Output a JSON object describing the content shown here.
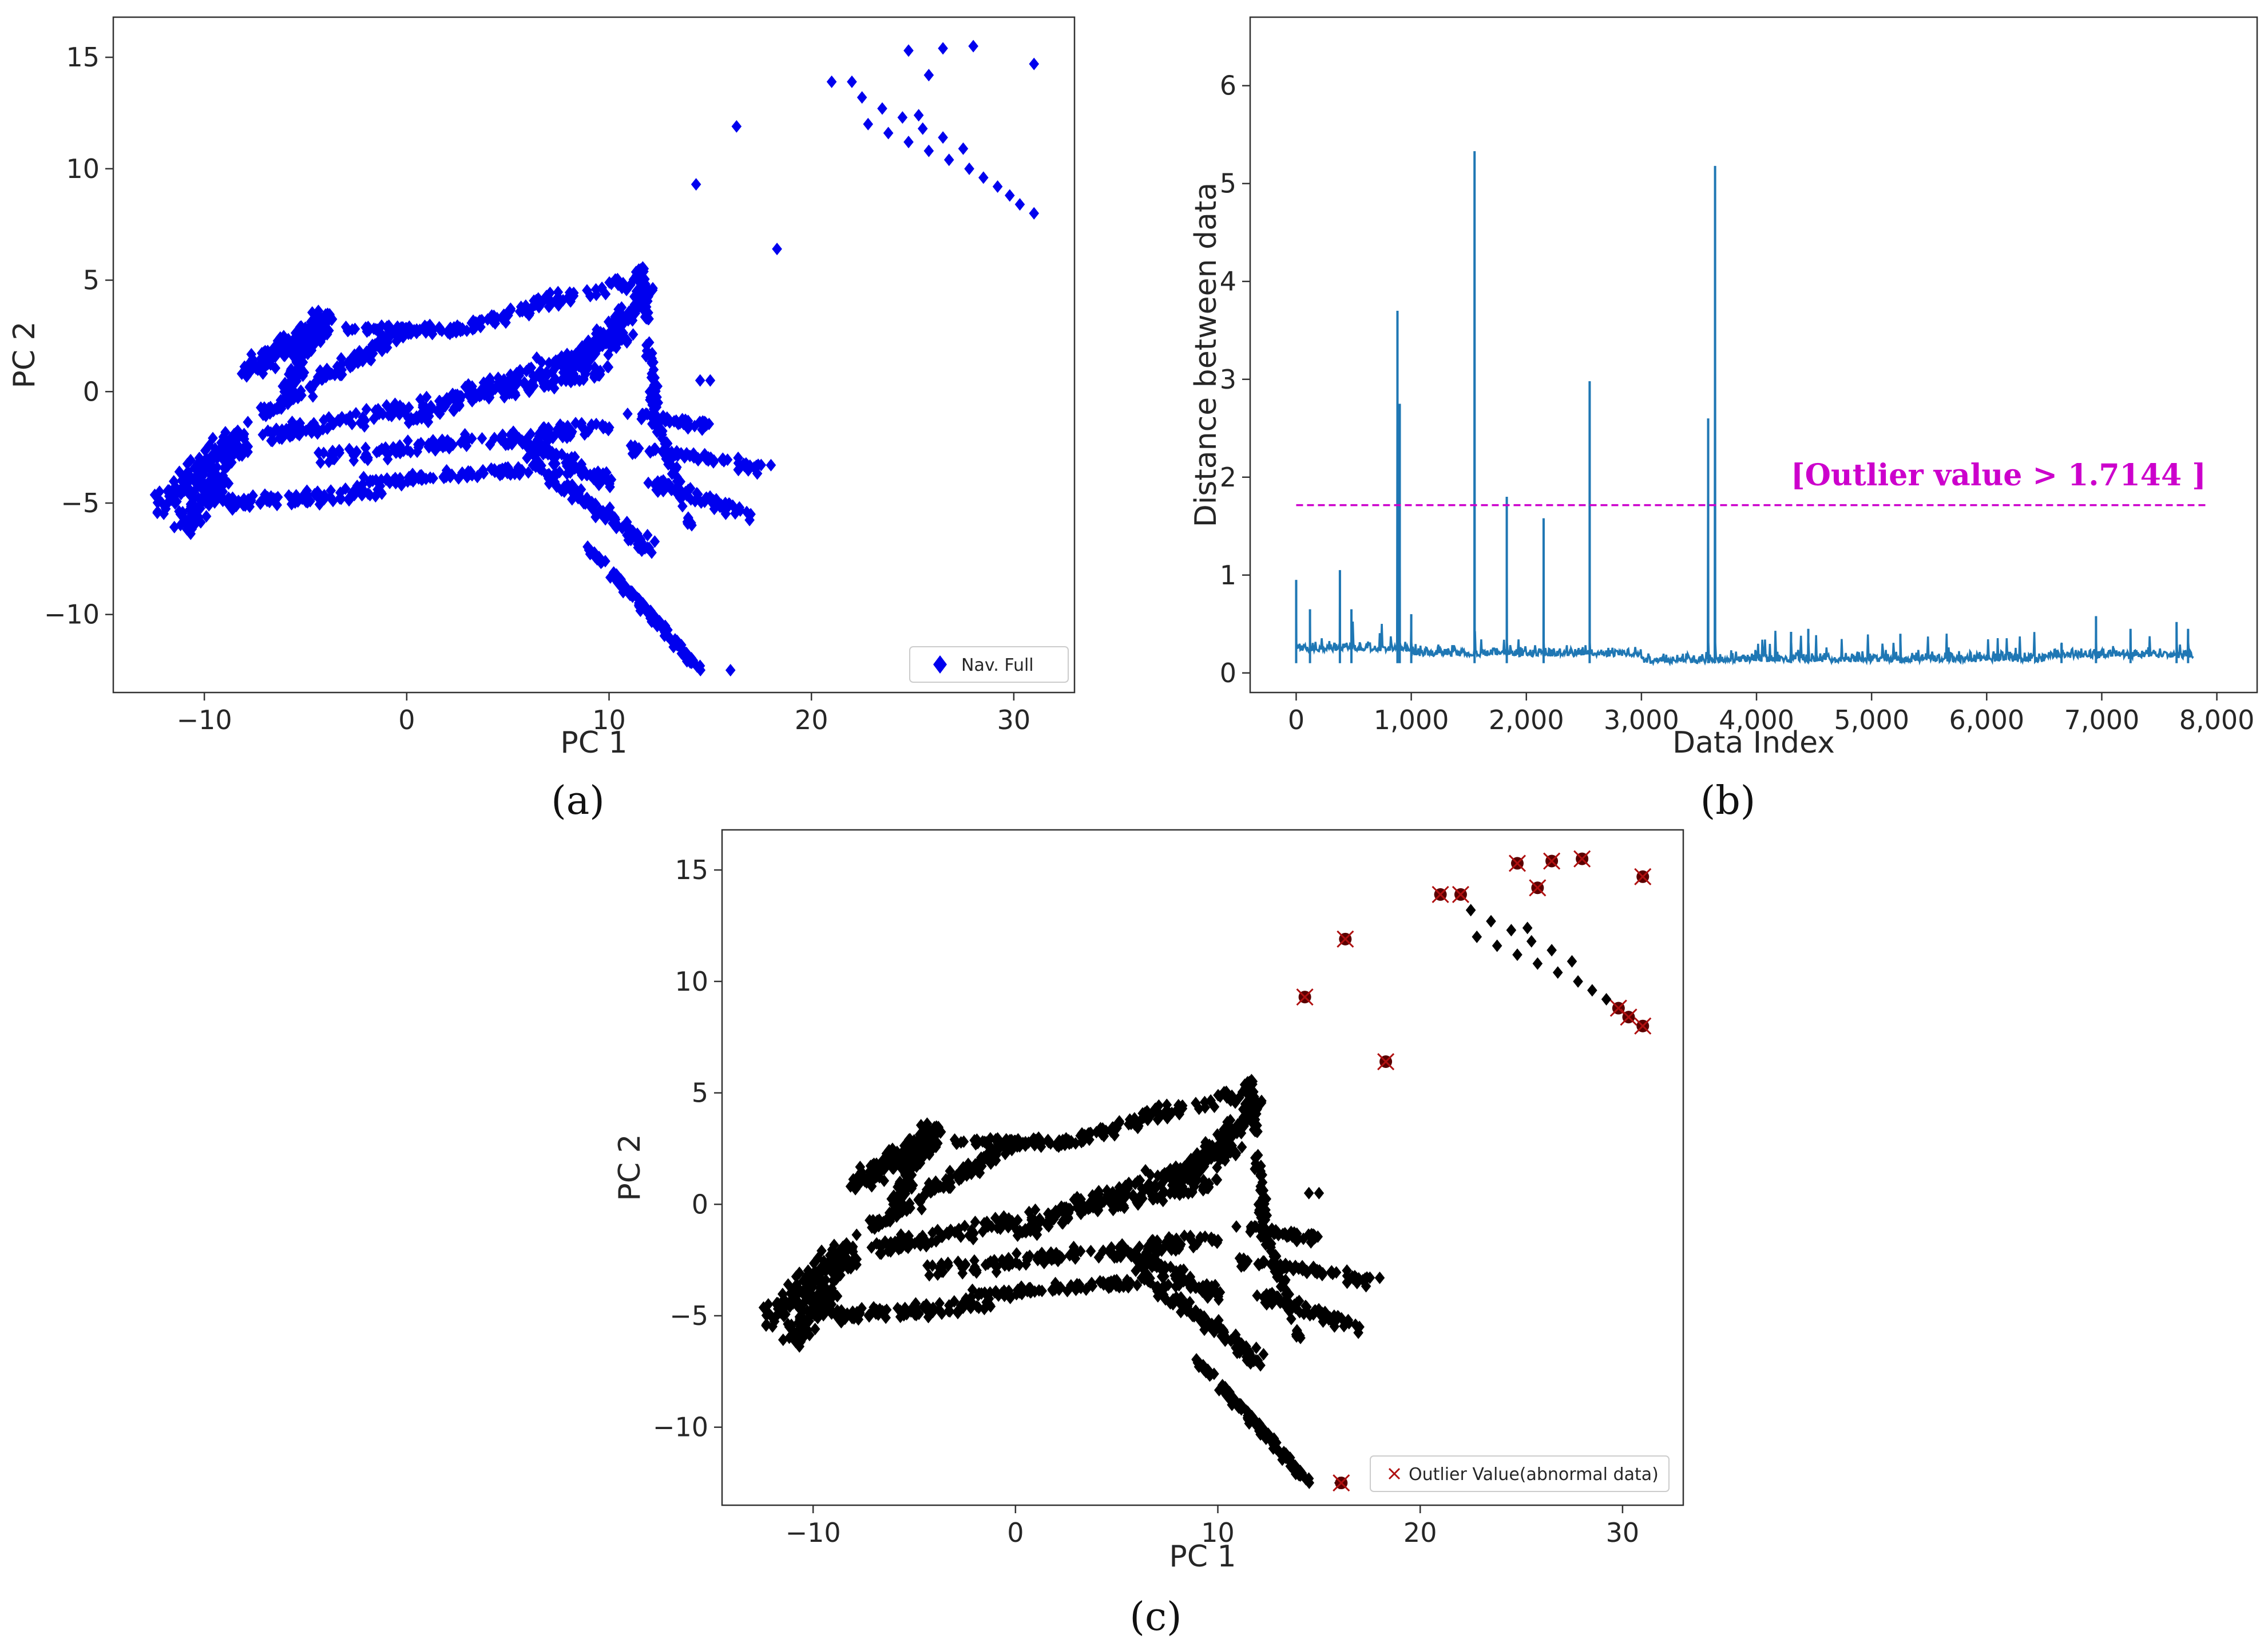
{
  "chart_data": [
    {
      "id": "a",
      "type": "scatter",
      "panel_label": "(a)",
      "xlabel": "PC 1",
      "ylabel": "PC 2",
      "xlim": [
        -14.5,
        33
      ],
      "ylim": [
        -13.5,
        16.8
      ],
      "xticks": [
        -10,
        0,
        10,
        20,
        30
      ],
      "yticks": [
        -10,
        -5,
        0,
        5,
        10,
        15
      ],
      "xtick_labels": [
        "−10",
        "0",
        "10",
        "20",
        "30"
      ],
      "ytick_labels": [
        "−10",
        "−5",
        "0",
        "5",
        "10",
        "15"
      ],
      "legend": "Nav. Full",
      "legend_loc": "lower right",
      "marker": "diamond",
      "color": "#0000ee"
    },
    {
      "id": "b",
      "type": "line",
      "panel_label": "(b)",
      "xlabel": "Data Index",
      "ylabel": "Distance between data",
      "xlim": [
        -400,
        8350
      ],
      "ylim": [
        -0.2,
        6.7
      ],
      "xticks": [
        0,
        1000,
        2000,
        3000,
        4000,
        5000,
        6000,
        7000,
        8000
      ],
      "yticks": [
        0,
        1,
        2,
        3,
        4,
        5,
        6
      ],
      "xtick_labels": [
        "0",
        "1,000",
        "2,000",
        "3,000",
        "4,000",
        "5,000",
        "6,000",
        "7,000",
        "8,000"
      ],
      "ytick_labels": [
        "0",
        "1",
        "2",
        "3",
        "4",
        "5",
        "6"
      ],
      "threshold": 1.7144,
      "annotation": "[Outlier value > 1.7144 ]",
      "line_color": "#1f77b4",
      "threshold_color": "#cc00cc",
      "n_points": 7800,
      "baseline_level": 0.15,
      "peaks": [
        {
          "x": 0,
          "y": 0.95
        },
        {
          "x": 120,
          "y": 0.65
        },
        {
          "x": 380,
          "y": 1.05
        },
        {
          "x": 480,
          "y": 0.65
        },
        {
          "x": 880,
          "y": 3.7
        },
        {
          "x": 900,
          "y": 2.75
        },
        {
          "x": 1000,
          "y": 0.6
        },
        {
          "x": 1550,
          "y": 5.33
        },
        {
          "x": 1830,
          "y": 1.8
        },
        {
          "x": 2150,
          "y": 1.58
        },
        {
          "x": 2550,
          "y": 2.98
        },
        {
          "x": 3580,
          "y": 2.6
        },
        {
          "x": 3640,
          "y": 5.18
        },
        {
          "x": 4300,
          "y": 0.42
        },
        {
          "x": 4450,
          "y": 0.45
        },
        {
          "x": 5250,
          "y": 0.4
        },
        {
          "x": 6650,
          "y": 0.3
        },
        {
          "x": 6950,
          "y": 0.58
        },
        {
          "x": 7250,
          "y": 0.45
        },
        {
          "x": 7650,
          "y": 0.52
        },
        {
          "x": 7750,
          "y": 0.45
        }
      ]
    },
    {
      "id": "c",
      "type": "scatter",
      "panel_label": "(c)",
      "xlabel": "PC 1",
      "ylabel": "PC 2",
      "xlim": [
        -14.5,
        33
      ],
      "ylim": [
        -13.5,
        16.8
      ],
      "xticks": [
        -10,
        0,
        10,
        20,
        30
      ],
      "yticks": [
        -10,
        -5,
        0,
        5,
        10,
        15
      ],
      "xtick_labels": [
        "−10",
        "0",
        "10",
        "20",
        "30"
      ],
      "ytick_labels": [
        "−10",
        "−5",
        "0",
        "5",
        "10",
        "15"
      ],
      "legend": "Outlier Value(abnormal data)",
      "legend_loc": "lower right",
      "marker": "diamond",
      "color": "#000000",
      "outlier_color": "#b01010"
    }
  ],
  "scatter_main_cluster": {
    "segments": [
      {
        "from": [
          -12,
          -5
        ],
        "to": [
          -8,
          -2
        ],
        "n": 160,
        "spread": 1.6
      },
      {
        "from": [
          -11,
          -6
        ],
        "to": [
          -9,
          -4
        ],
        "n": 90,
        "spread": 1.2
      },
      {
        "from": [
          -8,
          1
        ],
        "to": [
          -4,
          3
        ],
        "n": 160,
        "spread": 1.2
      },
      {
        "from": [
          -6,
          0
        ],
        "to": [
          -4,
          3.5
        ],
        "n": 100,
        "spread": 1.0
      },
      {
        "from": [
          -7,
          -1
        ],
        "to": [
          0,
          2.8
        ],
        "n": 120,
        "spread": 0.9
      },
      {
        "from": [
          -7,
          -2
        ],
        "to": [
          10,
          1
        ],
        "n": 170,
        "spread": 0.9
      },
      {
        "from": [
          -3,
          2.8
        ],
        "to": [
          3,
          2.8
        ],
        "n": 70,
        "spread": 0.5
      },
      {
        "from": [
          3,
          3
        ],
        "to": [
          12,
          5.2
        ],
        "n": 100,
        "spread": 0.8
      },
      {
        "from": [
          0,
          -1.2
        ],
        "to": [
          11,
          2.5
        ],
        "n": 160,
        "spread": 1.1
      },
      {
        "from": [
          8,
          1
        ],
        "to": [
          12,
          4.5
        ],
        "n": 110,
        "spread": 1.0
      },
      {
        "from": [
          11.5,
          5.5
        ],
        "to": [
          12.5,
          -2
        ],
        "n": 80,
        "spread": 0.6
      },
      {
        "from": [
          -4,
          -3
        ],
        "to": [
          10,
          -1.5
        ],
        "n": 140,
        "spread": 0.9
      },
      {
        "from": [
          -9,
          -5
        ],
        "to": [
          -1,
          -4.5
        ],
        "n": 100,
        "spread": 0.8
      },
      {
        "from": [
          -2,
          -4
        ],
        "to": [
          6,
          -3.5
        ],
        "n": 80,
        "spread": 0.6
      },
      {
        "from": [
          5,
          -2
        ],
        "to": [
          10,
          -4
        ],
        "n": 80,
        "spread": 0.9
      },
      {
        "from": [
          6,
          -3
        ],
        "to": [
          12,
          -7
        ],
        "n": 100,
        "spread": 0.8
      },
      {
        "from": [
          9,
          -7
        ],
        "to": [
          14.5,
          -12.5
        ],
        "n": 100,
        "spread": 0.45
      },
      {
        "from": [
          12,
          -4
        ],
        "to": [
          17,
          -5.5
        ],
        "n": 60,
        "spread": 0.8
      },
      {
        "from": [
          11,
          -2.5
        ],
        "to": [
          18,
          -3.5
        ],
        "n": 60,
        "spread": 0.6
      },
      {
        "from": [
          11,
          -1
        ],
        "to": [
          15,
          -1.5
        ],
        "n": 40,
        "spread": 0.6
      },
      {
        "from": [
          12,
          0
        ],
        "to": [
          14,
          -6
        ],
        "n": 40,
        "spread": 0.5
      }
    ],
    "extra_points": [
      [
        16,
        -12.5
      ],
      [
        14.5,
        0.5
      ],
      [
        15,
        0.5
      ],
      [
        18,
        -3.3
      ],
      [
        17,
        -5.5
      ]
    ]
  },
  "scatter_upper_points": [
    [
      14.3,
      9.3
    ],
    [
      16.3,
      11.9
    ],
    [
      18.3,
      6.4
    ],
    [
      21.0,
      13.9
    ],
    [
      22.0,
      13.9
    ],
    [
      24.8,
      15.3
    ],
    [
      26.5,
      15.4
    ],
    [
      28.0,
      15.5
    ],
    [
      31.0,
      14.7
    ],
    [
      25.8,
      14.2
    ],
    [
      22.5,
      13.2
    ],
    [
      23.5,
      12.7
    ],
    [
      24.5,
      12.3
    ],
    [
      25.5,
      11.8
    ],
    [
      26.5,
      11.4
    ],
    [
      27.5,
      10.9
    ],
    [
      22.8,
      12.0
    ],
    [
      23.8,
      11.6
    ],
    [
      24.8,
      11.2
    ],
    [
      25.8,
      10.8
    ],
    [
      26.8,
      10.4
    ],
    [
      27.8,
      10.0
    ],
    [
      28.5,
      9.6
    ],
    [
      29.2,
      9.2
    ],
    [
      29.8,
      8.8
    ],
    [
      30.3,
      8.4
    ],
    [
      31.0,
      8.0
    ],
    [
      25.3,
      12.4
    ]
  ],
  "outliers_c": [
    [
      14.3,
      9.3
    ],
    [
      16.3,
      11.9
    ],
    [
      18.3,
      6.4
    ],
    [
      16.1,
      -12.5
    ],
    [
      21.0,
      13.9
    ],
    [
      22.0,
      13.9
    ],
    [
      24.8,
      15.3
    ],
    [
      25.8,
      14.2
    ],
    [
      26.5,
      15.4
    ],
    [
      28.0,
      15.5
    ],
    [
      31.0,
      14.7
    ],
    [
      29.8,
      8.8
    ],
    [
      30.3,
      8.4
    ],
    [
      31.0,
      8.0
    ]
  ]
}
